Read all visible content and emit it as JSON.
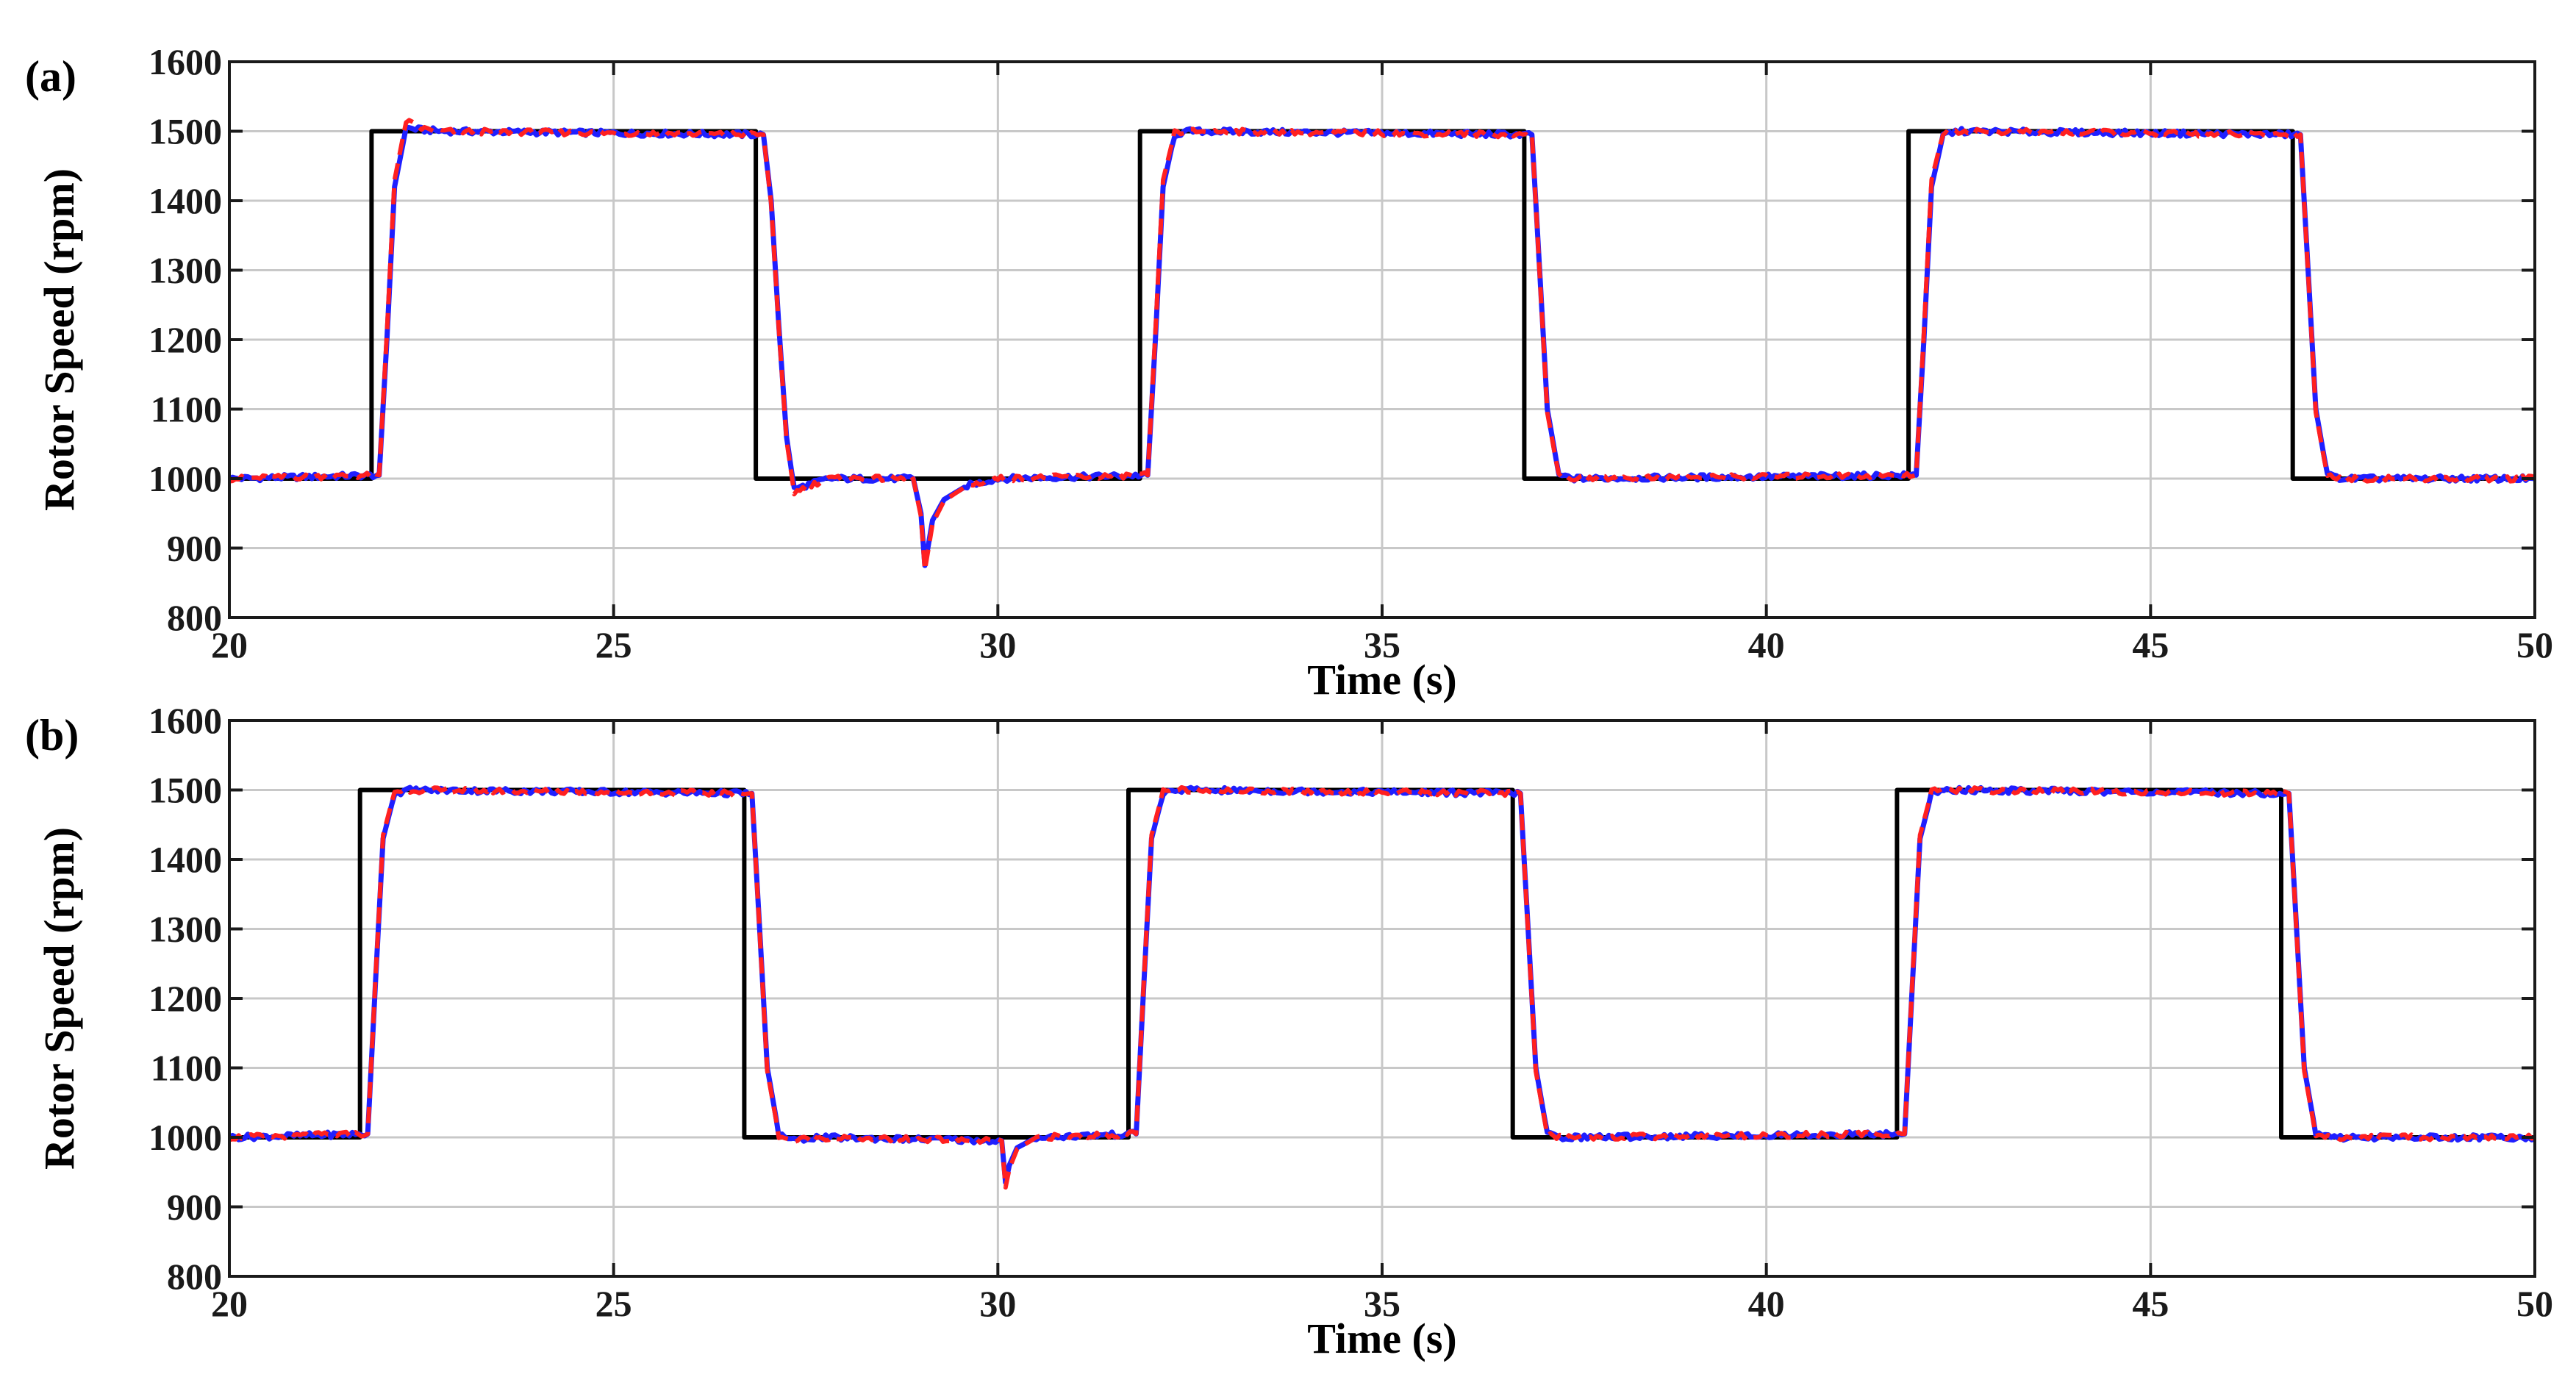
{
  "colors": {
    "reference": "#000000",
    "series_blue": "#1f1fff",
    "series_red": "#ff2020",
    "grid": "#c8c8c8",
    "frame": "#1a1a1a"
  },
  "chart_data": [
    {
      "type": "line",
      "panel_label": "(a)",
      "xlabel": "Time (s)",
      "ylabel": "Rotor Speed (rpm)",
      "xlim": [
        20,
        50
      ],
      "ylim": [
        800,
        1600
      ],
      "xticks": [
        20,
        25,
        30,
        35,
        40,
        45,
        50
      ],
      "yticks": [
        800,
        900,
        1000,
        1100,
        1200,
        1300,
        1400,
        1500,
        1600
      ],
      "grid": true,
      "series": [
        {
          "style": "solid-black",
          "x": [
            20,
            21.85,
            21.85,
            26.85,
            26.85,
            31.85,
            31.85,
            36.85,
            36.85,
            41.85,
            41.85,
            46.85,
            46.85,
            50
          ],
          "y": [
            1000,
            1000,
            1500,
            1500,
            1000,
            1000,
            1500,
            1500,
            1000,
            1000,
            1500,
            1500,
            1000,
            1000
          ]
        },
        {
          "style": "solid-blue",
          "x": [
            20,
            21.95,
            22.05,
            22.15,
            22.3,
            22.5,
            22.8,
            26.95,
            27.05,
            27.15,
            27.25,
            27.35,
            27.5,
            27.8,
            28.9,
            29.0,
            29.05,
            29.15,
            29.3,
            29.6,
            30.0,
            31.95,
            32.05,
            32.15,
            32.3,
            32.5,
            36.95,
            37.05,
            37.15,
            37.3,
            37.5,
            41.95,
            42.05,
            42.15,
            42.3,
            42.5,
            46.95,
            47.05,
            47.15,
            47.3,
            47.5,
            50
          ],
          "y": [
            1000,
            1005,
            1200,
            1420,
            1505,
            1502,
            1500,
            1495,
            1400,
            1220,
            1060,
            985,
            990,
            1000,
            1000,
            950,
            875,
            940,
            970,
            990,
            1000,
            1005,
            1200,
            1420,
            1495,
            1500,
            1495,
            1300,
            1100,
            1005,
            1000,
            1005,
            1200,
            1420,
            1495,
            1500,
            1495,
            1300,
            1100,
            1005,
            1000,
            1000
          ]
        },
        {
          "style": "dashed-red",
          "x": [
            20,
            21.95,
            22.05,
            22.15,
            22.3,
            22.5,
            22.8,
            26.95,
            27.05,
            27.15,
            27.25,
            27.35,
            27.5,
            27.8,
            28.9,
            29.0,
            29.05,
            29.15,
            29.3,
            29.6,
            30.0,
            31.95,
            32.05,
            32.15,
            32.3,
            32.5,
            36.95,
            37.05,
            37.15,
            37.3,
            37.5,
            41.95,
            42.05,
            42.15,
            42.3,
            42.5,
            46.95,
            47.05,
            47.15,
            47.3,
            47.5,
            50
          ],
          "y": [
            1000,
            1005,
            1210,
            1430,
            1515,
            1504,
            1500,
            1495,
            1395,
            1215,
            1055,
            980,
            988,
            1000,
            1000,
            945,
            868,
            935,
            968,
            990,
            1000,
            1005,
            1210,
            1430,
            1498,
            1500,
            1495,
            1295,
            1095,
            1003,
            1000,
            1005,
            1210,
            1430,
            1498,
            1500,
            1495,
            1295,
            1095,
            1003,
            1000,
            1000
          ]
        }
      ]
    },
    {
      "type": "line",
      "panel_label": "(b)",
      "xlabel": "Time (s)",
      "ylabel": "Rotor Speed (rpm)",
      "xlim": [
        20,
        50
      ],
      "ylim": [
        800,
        1600
      ],
      "xticks": [
        20,
        25,
        30,
        35,
        40,
        45,
        50
      ],
      "yticks": [
        800,
        900,
        1000,
        1100,
        1200,
        1300,
        1400,
        1500,
        1600
      ],
      "grid": true,
      "series": [
        {
          "style": "solid-black",
          "x": [
            20,
            21.7,
            21.7,
            26.7,
            26.7,
            31.7,
            31.7,
            36.7,
            36.7,
            41.7,
            41.7,
            46.7,
            46.7,
            50
          ],
          "y": [
            1000,
            1000,
            1500,
            1500,
            1000,
            1000,
            1500,
            1500,
            1000,
            1000,
            1500,
            1500,
            1000,
            1000
          ]
        },
        {
          "style": "solid-blue",
          "x": [
            20,
            21.8,
            21.9,
            22.0,
            22.15,
            22.35,
            26.8,
            26.9,
            27.0,
            27.15,
            27.35,
            27.6,
            30.05,
            30.1,
            30.15,
            30.25,
            30.5,
            31.8,
            31.9,
            32.0,
            32.15,
            32.35,
            36.8,
            36.9,
            37.0,
            37.15,
            37.35,
            41.8,
            41.9,
            42.0,
            42.15,
            42.35,
            46.8,
            46.9,
            47.0,
            47.15,
            47.35,
            50
          ],
          "y": [
            1000,
            1005,
            1220,
            1430,
            1495,
            1500,
            1495,
            1300,
            1100,
            1005,
            995,
            1000,
            995,
            935,
            960,
            985,
            1000,
            1005,
            1220,
            1430,
            1495,
            1500,
            1495,
            1300,
            1100,
            1005,
            1000,
            1005,
            1220,
            1430,
            1495,
            1500,
            1495,
            1300,
            1100,
            1005,
            1000,
            1000
          ]
        },
        {
          "style": "dashed-red",
          "x": [
            20,
            21.8,
            21.9,
            22.0,
            22.15,
            22.35,
            26.8,
            26.9,
            27.0,
            27.15,
            27.35,
            27.6,
            30.05,
            30.1,
            30.15,
            30.25,
            30.5,
            31.8,
            31.9,
            32.0,
            32.15,
            32.35,
            36.8,
            36.9,
            37.0,
            37.15,
            37.35,
            41.8,
            41.9,
            42.0,
            42.15,
            42.35,
            46.8,
            46.9,
            47.0,
            47.15,
            47.35,
            50
          ],
          "y": [
            1000,
            1005,
            1225,
            1435,
            1498,
            1500,
            1495,
            1295,
            1095,
            1003,
            995,
            1000,
            995,
            928,
            955,
            983,
            1000,
            1005,
            1225,
            1435,
            1498,
            1500,
            1495,
            1295,
            1095,
            1003,
            1000,
            1005,
            1225,
            1435,
            1498,
            1500,
            1495,
            1295,
            1095,
            1003,
            1000,
            1000
          ]
        }
      ]
    }
  ]
}
